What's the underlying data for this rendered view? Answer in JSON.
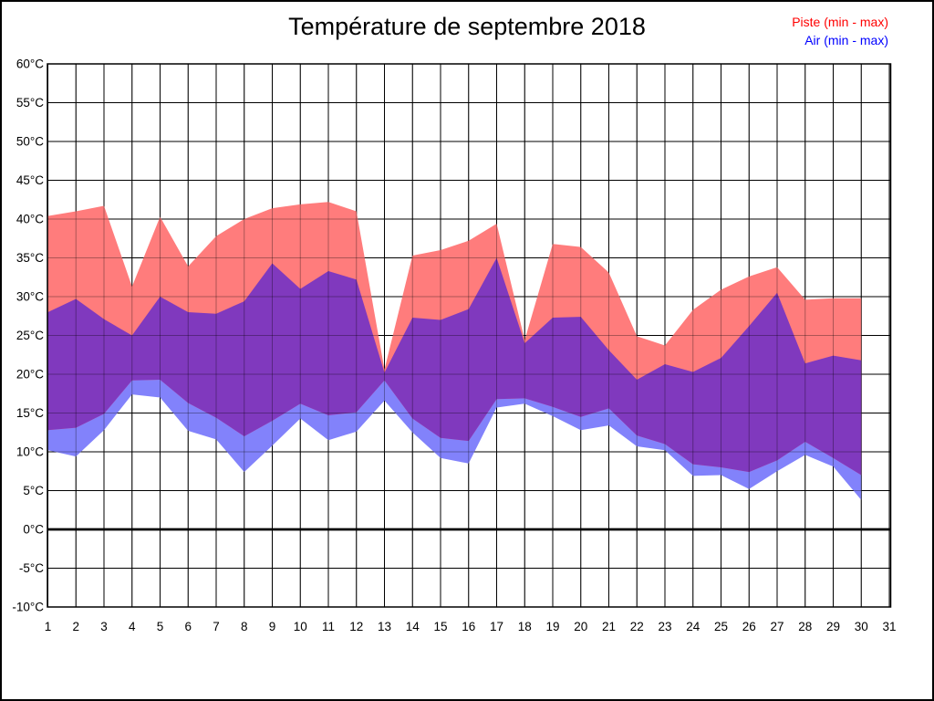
{
  "title": "Température de septembre 2018",
  "legend": [
    {
      "label": "Piste (min - max)",
      "color": "#ff0000"
    },
    {
      "label": "Air (min - max)",
      "color": "#0000ff"
    }
  ],
  "chart_data": {
    "type": "area",
    "title": "Température de septembre 2018",
    "xlabel": "",
    "ylabel": "",
    "ylim": [
      -10,
      60
    ],
    "ytick_step": 5,
    "ytick_values": [
      60,
      55,
      50,
      45,
      40,
      35,
      30,
      25,
      20,
      15,
      10,
      5,
      0,
      -5,
      -10
    ],
    "ytick_labels": [
      "60°C",
      "55°C",
      "50°C",
      "45°C",
      "40°C",
      "35°C",
      "30°C",
      "25°C",
      "20°C",
      "15°C",
      "10°C",
      "5°C",
      "0°C",
      "-5°C",
      "-10°C"
    ],
    "xticks": [
      1,
      2,
      3,
      4,
      5,
      6,
      7,
      8,
      9,
      10,
      11,
      12,
      13,
      14,
      15,
      16,
      17,
      18,
      19,
      20,
      21,
      22,
      23,
      24,
      25,
      26,
      27,
      28,
      29,
      30,
      31
    ],
    "days": [
      1,
      2,
      3,
      4,
      5,
      6,
      7,
      8,
      9,
      10,
      11,
      12,
      13,
      14,
      15,
      16,
      17,
      18,
      19,
      20,
      21,
      22,
      23,
      24,
      25,
      26,
      27,
      28,
      29,
      30
    ],
    "grid": true,
    "zero_line": true,
    "legend_position": "top-right",
    "series": [
      {
        "name": "Piste min",
        "values": [
          12.8,
          13.1,
          14.9,
          19.2,
          19.3,
          16.3,
          14.4,
          12.0,
          14.0,
          16.2,
          14.7,
          15.1,
          19.2,
          14.3,
          11.8,
          11.4,
          16.8,
          16.9,
          15.8,
          14.5,
          15.6,
          12.1,
          11.0,
          8.4,
          8.0,
          7.4,
          8.9,
          11.3,
          9.2,
          7.0
        ]
      },
      {
        "name": "Piste max",
        "values": [
          40.4,
          41.0,
          41.7,
          31.3,
          40.3,
          33.9,
          37.8,
          40.0,
          41.4,
          41.9,
          42.2,
          41.0,
          20.6,
          35.3,
          36.0,
          37.2,
          39.4,
          24.4,
          36.8,
          36.4,
          33.1,
          24.9,
          23.7,
          28.3,
          30.9,
          32.6,
          33.8,
          29.6,
          29.8,
          29.8
        ]
      },
      {
        "name": "Air min",
        "values": [
          10.2,
          9.4,
          12.8,
          17.4,
          17.0,
          12.7,
          11.6,
          7.4,
          10.8,
          14.3,
          11.5,
          12.6,
          16.6,
          12.5,
          9.2,
          8.5,
          15.7,
          16.2,
          14.6,
          12.8,
          13.4,
          10.7,
          10.2,
          6.9,
          7.0,
          5.2,
          7.5,
          9.6,
          8.1,
          3.8
        ]
      },
      {
        "name": "Air max",
        "values": [
          28.0,
          29.7,
          27.1,
          25.0,
          30.0,
          28.0,
          27.8,
          29.4,
          34.3,
          31.0,
          33.3,
          32.2,
          20.2,
          27.3,
          27.0,
          28.4,
          35.0,
          24.0,
          27.3,
          27.4,
          23.1,
          19.3,
          21.3,
          20.3,
          22.1,
          26.2,
          30.5,
          21.4,
          22.4,
          21.8
        ]
      }
    ],
    "colors": {
      "piste_fill": "#ff7c7c",
      "air_fill": "#8282fb",
      "overlap_fill": "#8039be",
      "grid": "#000000",
      "axis_text": "#000000",
      "zero_line_color": "#000000"
    }
  }
}
